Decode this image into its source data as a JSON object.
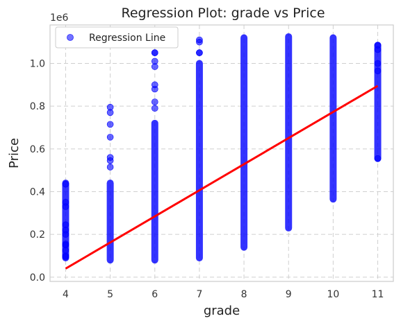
{
  "chart_data": {
    "type": "scatter",
    "title": "Regression Plot: grade vs Price",
    "xlabel": "grade",
    "ylabel": "Price",
    "y_offset_label": "1e6",
    "xlim": [
      3.65,
      11.35
    ],
    "ylim": [
      -0.02,
      1.18
    ],
    "x_ticks": [
      4,
      5,
      6,
      7,
      8,
      9,
      10,
      11
    ],
    "y_ticks": [
      0.0,
      0.2,
      0.4,
      0.6,
      0.8,
      1.0
    ],
    "y_tick_labels": [
      "0.0",
      "0.2",
      "0.4",
      "0.6",
      "0.8",
      "1.0"
    ],
    "grid": true,
    "legend": {
      "position": "top-left",
      "entries": [
        "Regression Line"
      ]
    },
    "colors": {
      "points": "#0000ff",
      "line": "#ff0000",
      "frame": "#cccccc"
    },
    "series": [
      {
        "kind": "points",
        "data": [
          {
            "x": 4,
            "y_min": 0.09,
            "y_max": 0.44,
            "isolated": [
              0.435,
              0.35,
              0.33,
              0.245,
              0.22,
              0.2,
              0.155,
              0.15,
              0.125,
              0.1,
              0.095
            ]
          },
          {
            "x": 5,
            "y_min": 0.08,
            "y_max": 0.44,
            "isolated": [
              0.795,
              0.77,
              0.715,
              0.655,
              0.56,
              0.545,
              0.515
            ]
          },
          {
            "x": 6,
            "y_min": 0.08,
            "y_max": 0.72,
            "isolated": [
              1.05,
              1.05,
              1.01,
              0.985,
              0.9,
              0.88,
              0.82,
              0.79
            ]
          },
          {
            "x": 7,
            "y_min": 0.09,
            "y_max": 1.0,
            "isolated": [
              1.11,
              1.1,
              1.05,
              1.05
            ]
          },
          {
            "x": 8,
            "y_min": 0.14,
            "y_max": 1.12,
            "isolated": []
          },
          {
            "x": 9,
            "y_min": 0.23,
            "y_max": 1.125,
            "isolated": []
          },
          {
            "x": 10,
            "y_min": 0.365,
            "y_max": 1.12,
            "isolated": []
          },
          {
            "x": 11,
            "y_min": 0.555,
            "y_max": 1.085,
            "isolated": [
              1.085,
              1.065,
              1.0,
              0.965,
              0.555
            ]
          }
        ]
      },
      {
        "kind": "line",
        "x": [
          4,
          11
        ],
        "y": [
          0.04,
          0.895
        ]
      }
    ]
  }
}
